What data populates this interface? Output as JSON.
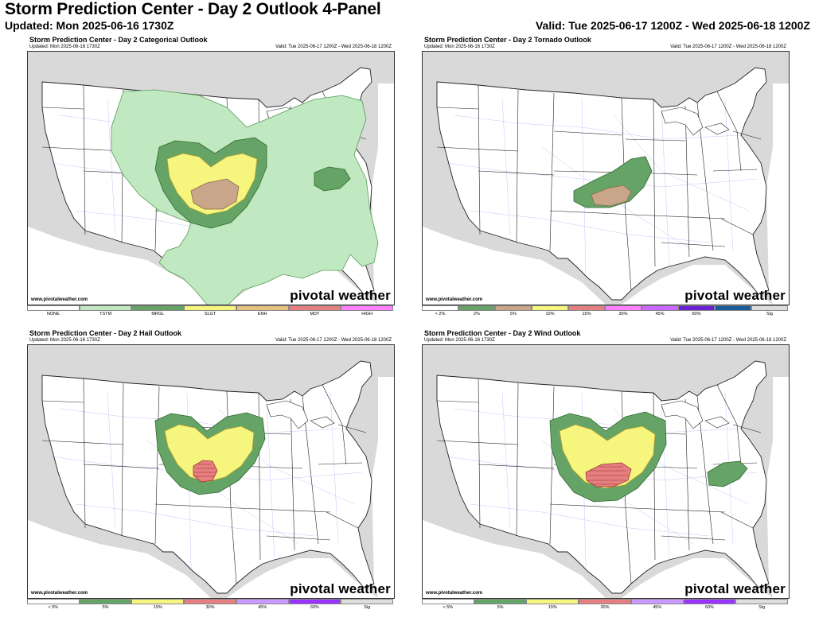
{
  "header": {
    "title": "Storm Prediction Center - Day 2 Outlook 4-Panel",
    "updated": "Updated: Mon 2025-06-16 1730Z",
    "valid": "Valid: Tue 2025-06-17 1200Z - Wed 2025-06-18 1200Z"
  },
  "panels": [
    {
      "title": "Storm Prediction Center - Day 2 Categorical Outlook",
      "updated": "Updated: Mon 2025-06-16 1730Z",
      "valid": "Valid: Tue 2025-06-17 1200Z - Wed 2025-06-18 1200Z",
      "credit": "www.pivotalweather.com",
      "brand": "pivotal weather",
      "legend": [
        {
          "label": "NONE",
          "color": "#ffffff"
        },
        {
          "label": "TSTM",
          "color": "#c1e9c1"
        },
        {
          "label": "MRGL",
          "color": "#66a366"
        },
        {
          "label": "SLGT",
          "color": "#f6f67f"
        },
        {
          "label": "ENH",
          "color": "#e6c27f"
        },
        {
          "label": "MDT",
          "color": "#e67f7f"
        },
        {
          "label": "HIGH",
          "color": "#ff80ff"
        }
      ]
    },
    {
      "title": "Storm Prediction Center - Day 2 Tornado Outlook",
      "updated": "Updated: Mon 2025-06-16 1730Z",
      "valid": "Valid: Tue 2025-06-17 1200Z - Wed 2025-06-18 1200Z",
      "credit": "www.pivotalweather.com",
      "brand": "pivotal weather",
      "legend": [
        {
          "label": "< 2%",
          "color": "#ffffff"
        },
        {
          "label": "2%",
          "color": "#66a366"
        },
        {
          "label": "5%",
          "color": "#c9a58a"
        },
        {
          "label": "10%",
          "color": "#f6f67f"
        },
        {
          "label": "15%",
          "color": "#e67f7f"
        },
        {
          "label": "30%",
          "color": "#ff80ff"
        },
        {
          "label": "45%",
          "color": "#cc66ff"
        },
        {
          "label": "60%",
          "color": "#6a1fd6"
        },
        {
          "label": "",
          "color": "#1a5a9a"
        },
        {
          "label": "Sig",
          "color": "#dddddd"
        }
      ]
    },
    {
      "title": "Storm Prediction Center - Day 2 Hail Outlook",
      "updated": "Updated: Mon 2025-06-16 1730Z",
      "valid": "Valid: Tue 2025-06-17 1200Z - Wed 2025-06-18 1200Z",
      "credit": "www.pivotalweather.com",
      "brand": "pivotal weather",
      "legend": [
        {
          "label": "< 5%",
          "color": "#ffffff"
        },
        {
          "label": "5%",
          "color": "#66a366"
        },
        {
          "label": "15%",
          "color": "#f6f67f"
        },
        {
          "label": "30%",
          "color": "#e67f7f"
        },
        {
          "label": "45%",
          "color": "#cc99ff"
        },
        {
          "label": "60%",
          "color": "#9933ff"
        },
        {
          "label": "Sig",
          "color": "#dddddd"
        }
      ]
    },
    {
      "title": "Storm Prediction Center - Day 2 Wind Outlook",
      "updated": "Updated: Mon 2025-06-16 1730Z",
      "valid": "Valid: Tue 2025-06-17 1200Z - Wed 2025-06-18 1200Z",
      "credit": "www.pivotalweather.com",
      "brand": "pivotal weather",
      "legend": [
        {
          "label": "< 5%",
          "color": "#ffffff"
        },
        {
          "label": "5%",
          "color": "#66a366"
        },
        {
          "label": "15%",
          "color": "#f6f67f"
        },
        {
          "label": "30%",
          "color": "#e67f7f"
        },
        {
          "label": "45%",
          "color": "#cc99ff"
        },
        {
          "label": "60%",
          "color": "#9933ff"
        },
        {
          "label": "Sig",
          "color": "#dddddd"
        }
      ]
    }
  ],
  "colors": {
    "tstm": "#c1e9c1",
    "mrgl_or_5pct": "#66a366",
    "slgt_or_15pct": "#f6f67f",
    "enh_or_5pct_tor": "#c9a58a",
    "pct30": "#e67f7f",
    "land": "#ffffff",
    "foreign_land": "#d9d9d9",
    "roads": "#7777ee",
    "borders": "#222222"
  }
}
